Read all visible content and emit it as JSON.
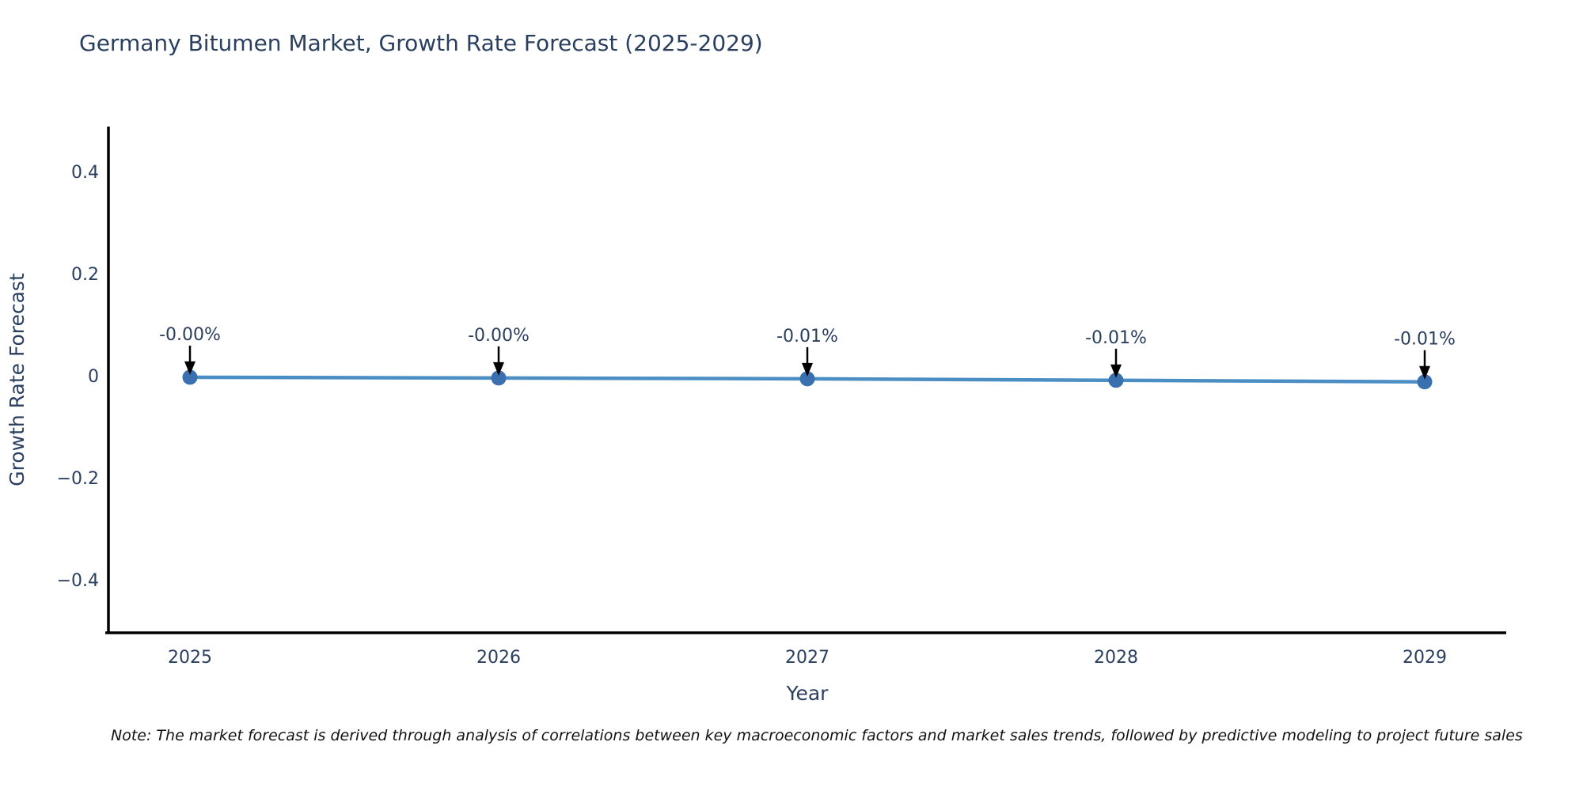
{
  "title": "Germany Bitumen Market, Growth Rate Forecast (2025-2029)",
  "note": "Note: The market forecast is derived through analysis of correlations between key macroeconomic factors and market sales trends, followed by predictive modeling to project future sales",
  "colors": {
    "background": "#ffffff",
    "title_text": "#2a3f5f",
    "axis_text": "#2a3f5f",
    "axis_line": "#000000",
    "line": "#4b8ec4",
    "marker": "#3a6fb0",
    "annotation_text": "#2a3f5f",
    "annotation_arrow": "#000000",
    "note_text": "#111111"
  },
  "chart_data": {
    "type": "line",
    "title": "Germany Bitumen Market, Growth Rate Forecast (2025-2029)",
    "xlabel": "Year",
    "ylabel": "Growth Rate Forecast",
    "categories": [
      "2025",
      "2026",
      "2027",
      "2028",
      "2029"
    ],
    "x": [
      2025,
      2026,
      2027,
      2028,
      2029
    ],
    "values": [
      -0.003,
      -0.0045,
      -0.006,
      -0.009,
      -0.012
    ],
    "point_labels": [
      "-0.00%",
      "-0.00%",
      "-0.01%",
      "-0.01%",
      "-0.01%"
    ],
    "ylim": [
      -0.5,
      0.49
    ],
    "yticks": [
      0.4,
      0.2,
      0,
      -0.2,
      -0.4
    ],
    "ytick_labels": [
      "0.4",
      "0.2",
      "0",
      "−0.2",
      "−0.4"
    ],
    "grid": false,
    "legend": false,
    "marker_style": "circle",
    "annotations_have_arrows": true
  }
}
